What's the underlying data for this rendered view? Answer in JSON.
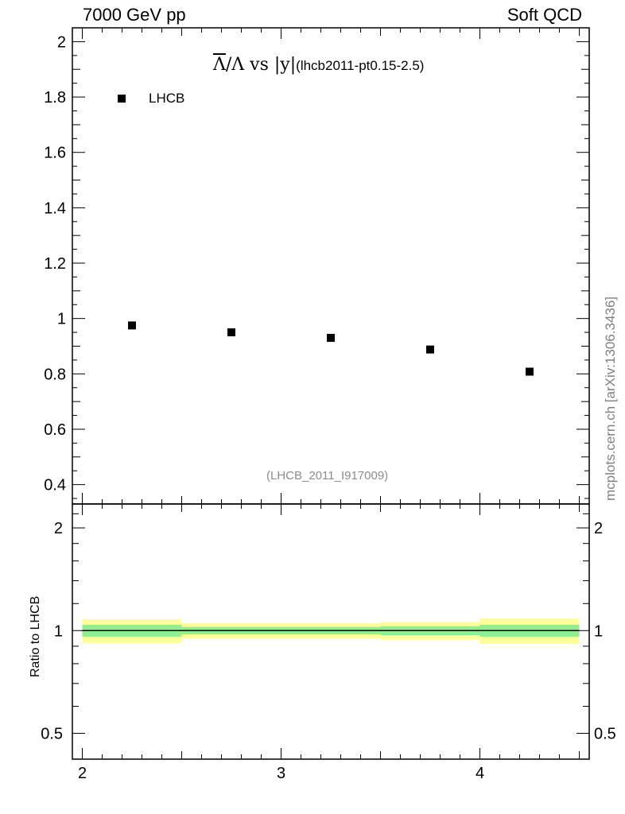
{
  "header": {
    "left": "7000 GeV pp",
    "right": "Soft QCD"
  },
  "side_label": "mcplots.cern.ch [arXiv:1306.3436]",
  "analysis_id": "(LHCB_2011_I917009)",
  "title": {
    "bar_symbol": "Λ",
    "rest": "/Λ vs |y|",
    "small": "(lhcb2011-pt0.15-2.5)"
  },
  "ratio_ylabel": "Ratio to LHCB",
  "colors": {
    "band_inner": "#90ee90",
    "band_outer": "#ffff99",
    "marker": "#000000"
  },
  "chart_data": [
    {
      "type": "scatter",
      "title": "Λ̄/Λ vs |y| (lhcb2011-pt0.15-2.5)",
      "xlim": [
        1.95,
        4.55
      ],
      "ylim": [
        0.33,
        2.05
      ],
      "ytick_labels": [
        "0.4",
        "0.6",
        "0.8",
        "1",
        "1.2",
        "1.4",
        "1.6",
        "1.8",
        "2"
      ],
      "yticks": [
        0.4,
        0.6,
        0.8,
        1.0,
        1.2,
        1.4,
        1.6,
        1.8,
        2.0
      ],
      "legend": "top-left",
      "series": [
        {
          "name": "LHCB",
          "x": [
            2.25,
            2.75,
            3.25,
            3.75,
            4.25
          ],
          "y": [
            0.975,
            0.95,
            0.93,
            0.888,
            0.808
          ],
          "xerr": [
            0.25,
            0.25,
            0.25,
            0.25,
            0.25
          ]
        }
      ]
    },
    {
      "type": "area",
      "ylabel": "Ratio to LHCB",
      "yscale": "log",
      "xlim": [
        1.95,
        4.55
      ],
      "ylim": [
        0.42,
        2.35
      ],
      "ytick_labels": [
        "0.5",
        "1",
        "2"
      ],
      "yticks": [
        0.5,
        1,
        2
      ],
      "xtick_labels": [
        "2",
        "3",
        "4"
      ],
      "xticks": [
        2,
        3,
        4
      ],
      "reference_line": 1.0,
      "bins": [
        {
          "x_low": 2.0,
          "x_high": 2.5,
          "inner": [
            0.96,
            1.04
          ],
          "outer": [
            0.92,
            1.08
          ]
        },
        {
          "x_low": 2.5,
          "x_high": 3.0,
          "inner": [
            0.975,
            1.025
          ],
          "outer": [
            0.95,
            1.05
          ]
        },
        {
          "x_low": 3.0,
          "x_high": 3.5,
          "inner": [
            0.975,
            1.025
          ],
          "outer": [
            0.95,
            1.05
          ]
        },
        {
          "x_low": 3.5,
          "x_high": 4.0,
          "inner": [
            0.97,
            1.03
          ],
          "outer": [
            0.94,
            1.06
          ]
        },
        {
          "x_low": 4.0,
          "x_high": 4.5,
          "inner": [
            0.96,
            1.04
          ],
          "outer": [
            0.915,
            1.085
          ]
        }
      ]
    }
  ]
}
